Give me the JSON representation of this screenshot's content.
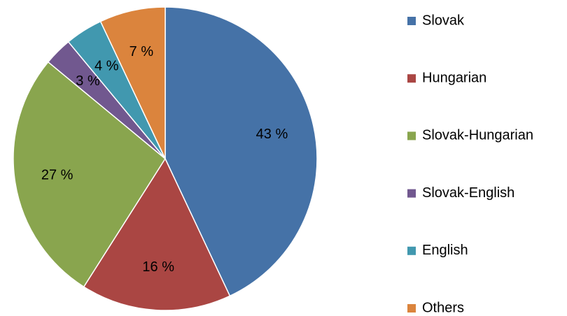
{
  "chart_data": {
    "type": "pie",
    "categories": [
      "Slovak",
      "Hungarian",
      "Slovak-Hungarian",
      "Slovak-English",
      "English",
      "Others"
    ],
    "values": [
      43,
      16,
      27,
      3,
      4,
      7
    ],
    "value_labels": [
      "43 %",
      "16 %",
      "27 %",
      "3 %",
      "4 %",
      "7 %"
    ],
    "colors": [
      "#4572a7",
      "#aa4643",
      "#89a54e",
      "#71588f",
      "#4198af",
      "#db843d"
    ],
    "legend": "right"
  }
}
